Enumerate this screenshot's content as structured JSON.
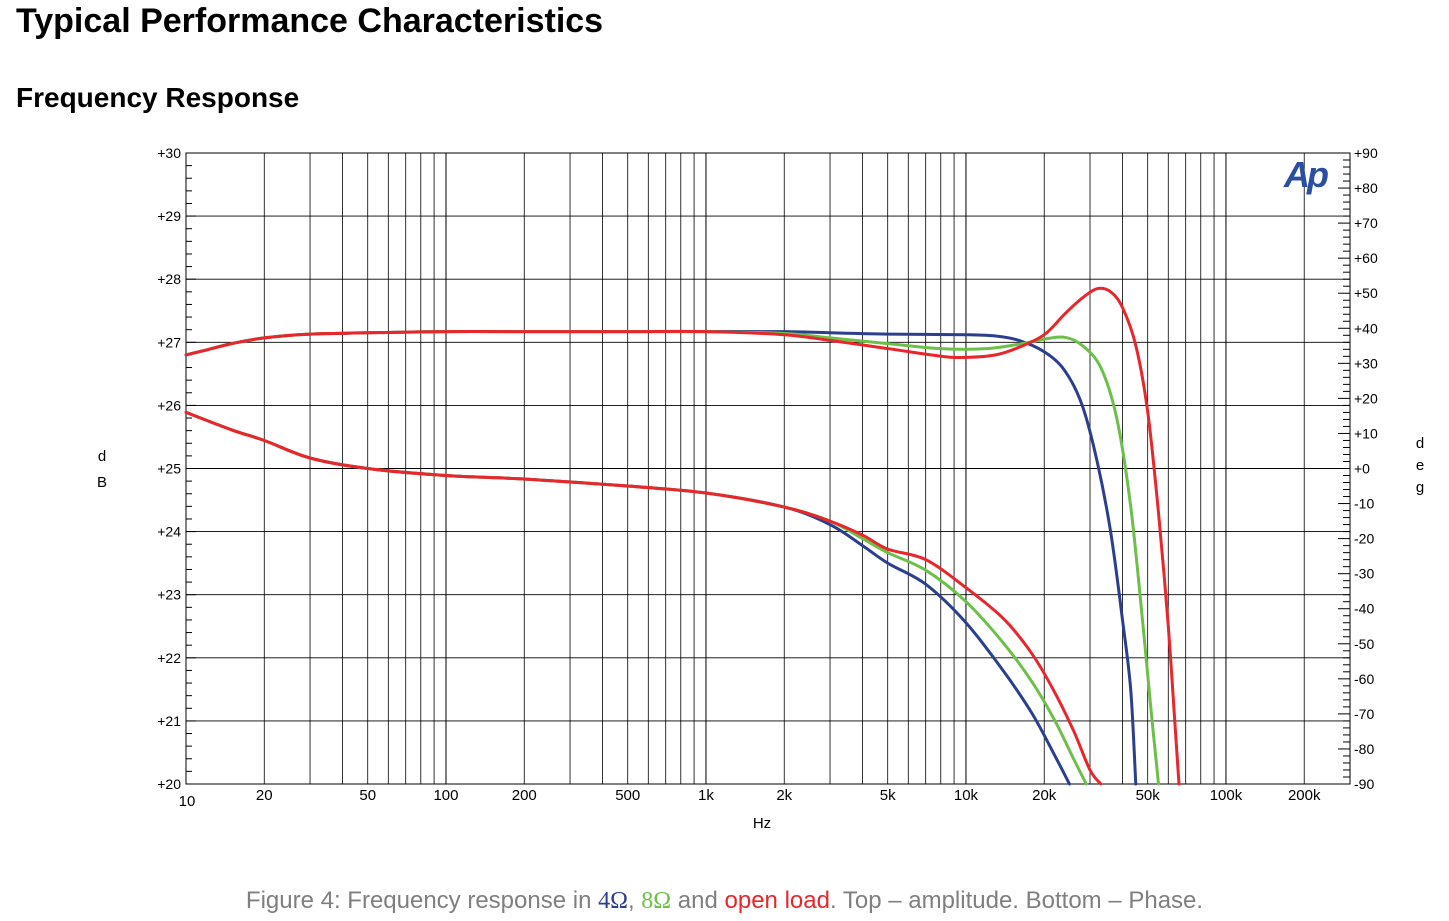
{
  "page": {
    "title": "Typical Performance Characteristics",
    "section": "Frequency Response"
  },
  "colors": {
    "ohm4": "#2c3f8f",
    "ohm8": "#6cc04a",
    "open": "#e8262b",
    "grid": "#000000",
    "caption": "#7f7f7f",
    "logo": "#2b4ea1"
  },
  "logo": {
    "text": "Ap"
  },
  "caption": {
    "prefix": "Figure 4: Frequency response in ",
    "s1": "4Ω",
    "sep1": ", ",
    "s2": "8Ω",
    "sep2": " and ",
    "s3": "open load",
    "suffix": ". Top – amplitude. Bottom – Phase."
  },
  "chart_data": {
    "type": "line",
    "xscale": "log",
    "xlim": [
      10,
      300000
    ],
    "xlabel": "Hz",
    "ylabel_left": "dB",
    "ylabel_right": "deg",
    "ylim_left": [
      20,
      30
    ],
    "ylim_right": [
      -90,
      90
    ],
    "x_ticks": [
      {
        "v": 10,
        "label": "10"
      },
      {
        "v": 20,
        "label": "20"
      },
      {
        "v": 50,
        "label": "50"
      },
      {
        "v": 100,
        "label": "100"
      },
      {
        "v": 200,
        "label": "200"
      },
      {
        "v": 500,
        "label": "500"
      },
      {
        "v": 1000,
        "label": "1k"
      },
      {
        "v": 2000,
        "label": "2k"
      },
      {
        "v": 5000,
        "label": "5k"
      },
      {
        "v": 10000,
        "label": "10k"
      },
      {
        "v": 20000,
        "label": "20k"
      },
      {
        "v": 50000,
        "label": "50k"
      },
      {
        "v": 100000,
        "label": "100k"
      },
      {
        "v": 200000,
        "label": "200k"
      }
    ],
    "y_left_ticks": [
      {
        "v": 30,
        "label": "+30"
      },
      {
        "v": 29,
        "label": "+29"
      },
      {
        "v": 28,
        "label": "+28"
      },
      {
        "v": 27,
        "label": "+27"
      },
      {
        "v": 26,
        "label": "+26"
      },
      {
        "v": 25,
        "label": "+25"
      },
      {
        "v": 24,
        "label": "+24"
      },
      {
        "v": 23,
        "label": "+23"
      },
      {
        "v": 22,
        "label": "+22"
      },
      {
        "v": 21,
        "label": "+21"
      },
      {
        "v": 20,
        "label": "+20"
      }
    ],
    "y_right_ticks": [
      {
        "v": 90,
        "label": "+90"
      },
      {
        "v": 80,
        "label": "+80"
      },
      {
        "v": 70,
        "label": "+70"
      },
      {
        "v": 60,
        "label": "+60"
      },
      {
        "v": 50,
        "label": "+50"
      },
      {
        "v": 40,
        "label": "+40"
      },
      {
        "v": 30,
        "label": "+30"
      },
      {
        "v": 20,
        "label": "+20"
      },
      {
        "v": 10,
        "label": "+10"
      },
      {
        "v": 0,
        "label": "+0"
      },
      {
        "v": -10,
        "label": "-10"
      },
      {
        "v": -20,
        "label": "-20"
      },
      {
        "v": -30,
        "label": "-30"
      },
      {
        "v": -40,
        "label": "-40"
      },
      {
        "v": -50,
        "label": "-50"
      },
      {
        "v": -60,
        "label": "-60"
      },
      {
        "v": -70,
        "label": "-70"
      },
      {
        "v": -80,
        "label": "-80"
      },
      {
        "v": -90,
        "label": "-90"
      }
    ],
    "series": [
      {
        "name": "4Ω amplitude",
        "color": "#2c3f8f",
        "axis": "left",
        "points": [
          [
            10,
            26.8
          ],
          [
            12,
            26.88
          ],
          [
            15,
            26.98
          ],
          [
            20,
            27.07
          ],
          [
            30,
            27.13
          ],
          [
            50,
            27.15
          ],
          [
            100,
            27.17
          ],
          [
            200,
            27.17
          ],
          [
            500,
            27.17
          ],
          [
            1000,
            27.17
          ],
          [
            2000,
            27.17
          ],
          [
            3000,
            27.15
          ],
          [
            5000,
            27.13
          ],
          [
            10000,
            27.12
          ],
          [
            13000,
            27.1
          ],
          [
            16000,
            27.03
          ],
          [
            20000,
            26.85
          ],
          [
            24000,
            26.55
          ],
          [
            28000,
            26.0
          ],
          [
            32000,
            25.1
          ],
          [
            36000,
            24.0
          ],
          [
            40000,
            22.6
          ],
          [
            43000,
            21.5
          ],
          [
            45000,
            20.0
          ]
        ]
      },
      {
        "name": "8Ω amplitude",
        "color": "#6cc04a",
        "axis": "left",
        "points": [
          [
            10,
            26.8
          ],
          [
            12,
            26.88
          ],
          [
            15,
            26.98
          ],
          [
            20,
            27.07
          ],
          [
            30,
            27.13
          ],
          [
            50,
            27.15
          ],
          [
            100,
            27.17
          ],
          [
            200,
            27.17
          ],
          [
            500,
            27.17
          ],
          [
            1000,
            27.17
          ],
          [
            2000,
            27.14
          ],
          [
            3000,
            27.07
          ],
          [
            5000,
            26.98
          ],
          [
            8000,
            26.9
          ],
          [
            12000,
            26.9
          ],
          [
            16000,
            26.97
          ],
          [
            20000,
            27.05
          ],
          [
            24000,
            27.08
          ],
          [
            28000,
            26.95
          ],
          [
            33000,
            26.6
          ],
          [
            38000,
            25.8
          ],
          [
            43000,
            24.4
          ],
          [
            48000,
            22.5
          ],
          [
            52000,
            21.0
          ],
          [
            55000,
            20.0
          ]
        ]
      },
      {
        "name": "open load amplitude",
        "color": "#e8262b",
        "axis": "left",
        "points": [
          [
            10,
            26.8
          ],
          [
            12,
            26.88
          ],
          [
            15,
            26.98
          ],
          [
            20,
            27.07
          ],
          [
            30,
            27.13
          ],
          [
            50,
            27.15
          ],
          [
            100,
            27.17
          ],
          [
            200,
            27.17
          ],
          [
            500,
            27.17
          ],
          [
            1000,
            27.17
          ],
          [
            2000,
            27.12
          ],
          [
            3000,
            27.03
          ],
          [
            5000,
            26.9
          ],
          [
            8000,
            26.78
          ],
          [
            10000,
            26.76
          ],
          [
            13000,
            26.8
          ],
          [
            16000,
            26.92
          ],
          [
            20000,
            27.12
          ],
          [
            24000,
            27.45
          ],
          [
            28000,
            27.7
          ],
          [
            32000,
            27.85
          ],
          [
            36000,
            27.8
          ],
          [
            40000,
            27.55
          ],
          [
            45000,
            26.95
          ],
          [
            50000,
            25.9
          ],
          [
            55000,
            24.3
          ],
          [
            60000,
            22.5
          ],
          [
            64000,
            20.8
          ],
          [
            66000,
            20.0
          ]
        ]
      },
      {
        "name": "4Ω phase",
        "color": "#2c3f8f",
        "axis": "right",
        "points": [
          [
            10,
            16
          ],
          [
            15,
            11
          ],
          [
            20,
            8
          ],
          [
            30,
            3
          ],
          [
            50,
            0
          ],
          [
            100,
            -2
          ],
          [
            200,
            -3
          ],
          [
            500,
            -5
          ],
          [
            1000,
            -7
          ],
          [
            2000,
            -11
          ],
          [
            3000,
            -16
          ],
          [
            4000,
            -22
          ],
          [
            5000,
            -27
          ],
          [
            7000,
            -33
          ],
          [
            10000,
            -44
          ],
          [
            14000,
            -58
          ],
          [
            18000,
            -70
          ],
          [
            22000,
            -82
          ],
          [
            25000,
            -90
          ]
        ]
      },
      {
        "name": "8Ω phase",
        "color": "#6cc04a",
        "axis": "right",
        "points": [
          [
            10,
            16
          ],
          [
            15,
            11
          ],
          [
            20,
            8
          ],
          [
            30,
            3
          ],
          [
            50,
            0
          ],
          [
            100,
            -2
          ],
          [
            200,
            -3
          ],
          [
            500,
            -5
          ],
          [
            1000,
            -7
          ],
          [
            2000,
            -11
          ],
          [
            3000,
            -15
          ],
          [
            4000,
            -20
          ],
          [
            5000,
            -24
          ],
          [
            7000,
            -29
          ],
          [
            10000,
            -38
          ],
          [
            14000,
            -50
          ],
          [
            18000,
            -61
          ],
          [
            22000,
            -72
          ],
          [
            26000,
            -83
          ],
          [
            29000,
            -90
          ]
        ]
      },
      {
        "name": "open load phase",
        "color": "#e8262b",
        "axis": "right",
        "points": [
          [
            10,
            16
          ],
          [
            15,
            11
          ],
          [
            20,
            8
          ],
          [
            30,
            3
          ],
          [
            50,
            0
          ],
          [
            100,
            -2
          ],
          [
            200,
            -3
          ],
          [
            500,
            -5
          ],
          [
            1000,
            -7
          ],
          [
            2000,
            -11
          ],
          [
            3000,
            -15
          ],
          [
            4000,
            -19
          ],
          [
            5000,
            -23
          ],
          [
            7000,
            -26
          ],
          [
            10000,
            -34
          ],
          [
            14000,
            -43
          ],
          [
            18000,
            -53
          ],
          [
            22000,
            -64
          ],
          [
            26000,
            -75
          ],
          [
            30000,
            -86
          ],
          [
            33000,
            -90
          ]
        ]
      }
    ]
  }
}
